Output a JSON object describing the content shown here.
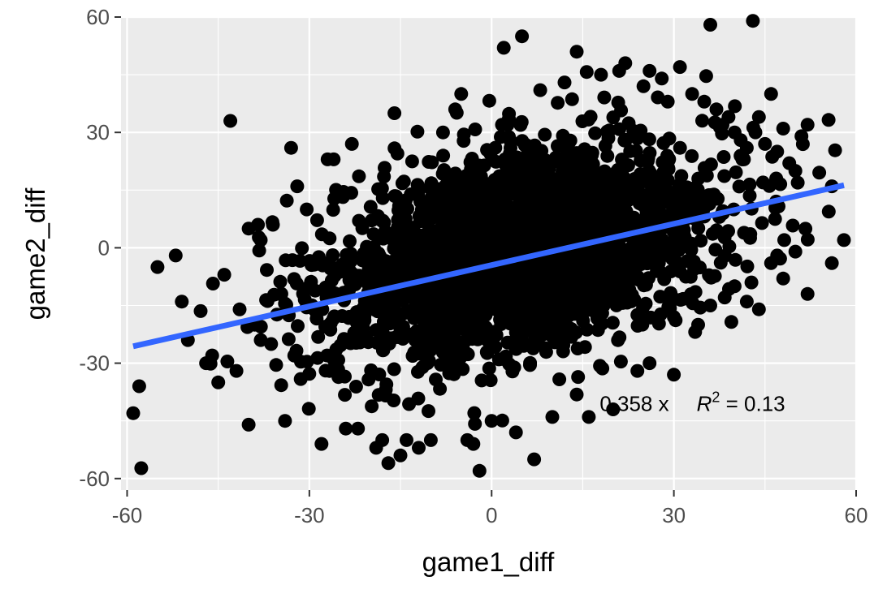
{
  "chart_data": {
    "type": "scatter",
    "title": "",
    "xlabel": "game1_diff",
    "ylabel": "game2_diff",
    "xlim": [
      -61,
      60
    ],
    "ylim": [
      -63,
      60
    ],
    "x_ticks": [
      -60,
      -30,
      0,
      30,
      60
    ],
    "y_ticks": [
      -60,
      -30,
      0,
      30,
      60
    ],
    "x_tick_labels": [
      "-60",
      "-30",
      "0",
      "30",
      "60"
    ],
    "y_tick_labels": [
      "-60",
      "-30",
      "0",
      "30",
      "60"
    ],
    "grid": true,
    "legend": "none",
    "colors": {
      "panel": "#ebebeb",
      "grid": "#ffffff",
      "points": "#000000",
      "fit_line": "#3366ff",
      "tick_text": "#4d4d4d"
    },
    "fit_line": {
      "slope": 0.358,
      "intercept": -4.5,
      "x_range": [
        -59,
        58
      ]
    },
    "annotation": {
      "equation_text": "0.358 x",
      "r2_label": "R",
      "r2_sup": "2",
      "r2_value": " = 0.13",
      "x": 30,
      "y": -40.5
    },
    "cloud": {
      "center": [
        5,
        -1
      ],
      "sd": [
        16,
        14
      ],
      "rho": 0.36,
      "count": 2600
    },
    "points": [
      [
        -59,
        -43
      ],
      [
        -58,
        -36
      ],
      [
        -55,
        -5
      ],
      [
        -52,
        -2
      ],
      [
        -51,
        -14
      ],
      [
        -50,
        -24
      ],
      [
        -43,
        33
      ],
      [
        -40,
        5
      ],
      [
        -38,
        2
      ],
      [
        -36,
        6
      ],
      [
        -34,
        -45
      ],
      [
        -33,
        26
      ],
      [
        -32,
        16
      ],
      [
        -28,
        -51
      ],
      [
        -27,
        23
      ],
      [
        -26,
        23
      ],
      [
        -24,
        -47
      ],
      [
        -23,
        27
      ],
      [
        -22,
        -47
      ],
      [
        -19,
        -52
      ],
      [
        -18,
        -50
      ],
      [
        -17,
        -56
      ],
      [
        -16,
        35
      ],
      [
        -15,
        -54
      ],
      [
        -14,
        -50
      ],
      [
        -12,
        -52
      ],
      [
        -10,
        -50
      ],
      [
        -8,
        30
      ],
      [
        -6,
        36
      ],
      [
        -5,
        40
      ],
      [
        -4,
        -50
      ],
      [
        -3,
        -51
      ],
      [
        -2,
        -58
      ],
      [
        0,
        -45
      ],
      [
        2,
        52
      ],
      [
        4,
        -48
      ],
      [
        5,
        55
      ],
      [
        7,
        -55
      ],
      [
        8,
        41
      ],
      [
        10,
        -44
      ],
      [
        12,
        43
      ],
      [
        14,
        51
      ],
      [
        16,
        -44
      ],
      [
        18,
        45
      ],
      [
        20,
        -42
      ],
      [
        21,
        46
      ],
      [
        22,
        48
      ],
      [
        25,
        42
      ],
      [
        26,
        46
      ],
      [
        28,
        44
      ],
      [
        29,
        38
      ],
      [
        30,
        -33
      ],
      [
        31,
        47
      ],
      [
        33,
        40
      ],
      [
        35,
        38
      ],
      [
        36,
        58
      ],
      [
        37,
        36
      ],
      [
        38,
        32
      ],
      [
        39,
        34
      ],
      [
        40,
        30
      ],
      [
        41,
        28
      ],
      [
        42,
        26
      ],
      [
        43,
        59
      ],
      [
        44,
        34
      ],
      [
        45,
        27
      ],
      [
        46,
        40
      ],
      [
        47,
        25
      ],
      [
        48,
        31
      ],
      [
        49,
        22
      ],
      [
        50,
        20
      ],
      [
        51,
        29
      ],
      [
        52,
        32
      ],
      [
        40,
        -10
      ],
      [
        42,
        -14
      ],
      [
        44,
        -16
      ],
      [
        46,
        -4
      ],
      [
        47,
        -2
      ],
      [
        48,
        -8
      ],
      [
        50,
        -1
      ],
      [
        52,
        -12
      ],
      [
        56,
        16
      ],
      [
        56,
        -4
      ],
      [
        58,
        2
      ],
      [
        36,
        -15
      ],
      [
        34,
        -20
      ],
      [
        30,
        -18
      ],
      [
        26,
        -30
      ],
      [
        24,
        -32
      ],
      [
        -44,
        -7
      ],
      [
        -46,
        -28
      ],
      [
        -47,
        -30
      ],
      [
        -45,
        -35
      ],
      [
        -42,
        -32
      ],
      [
        -40,
        -46
      ],
      [
        -39,
        -20
      ],
      [
        -38,
        -24
      ]
    ]
  }
}
